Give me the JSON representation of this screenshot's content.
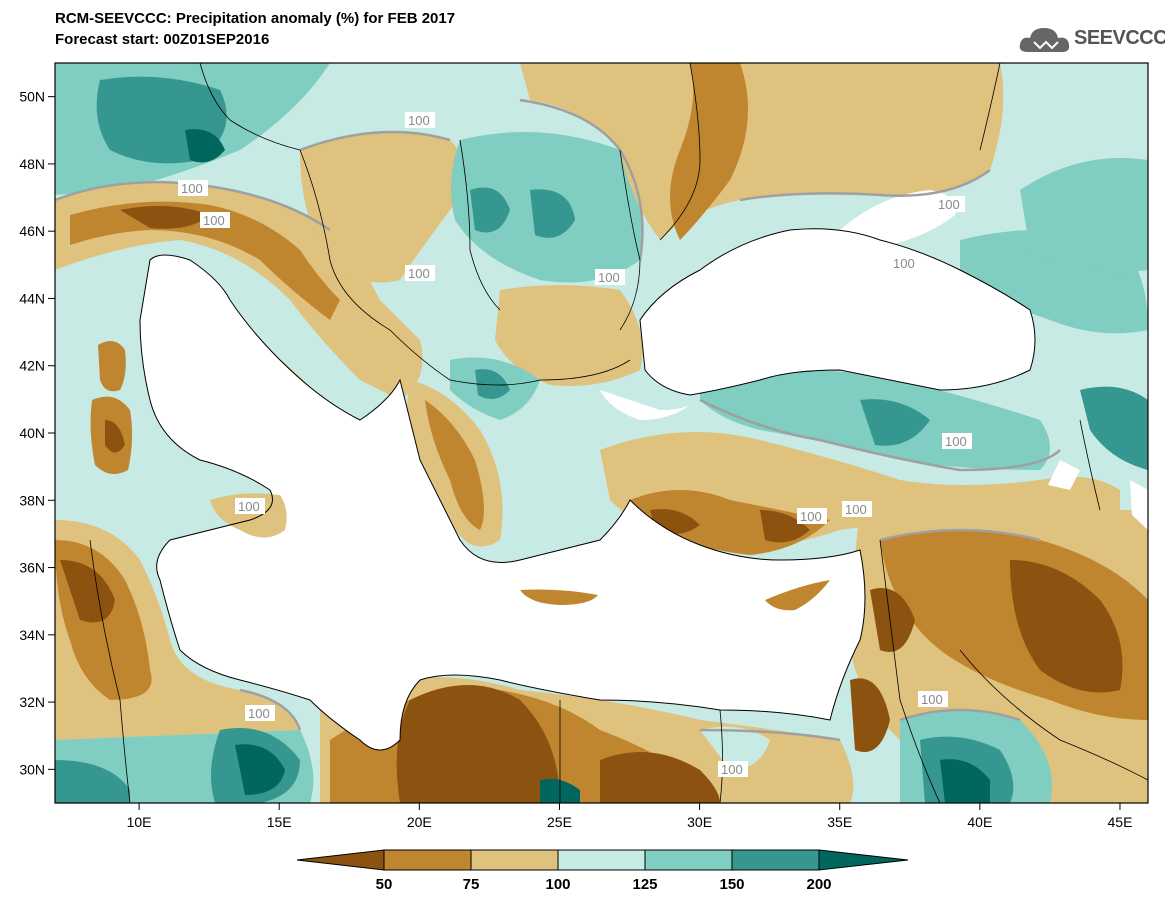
{
  "header": {
    "title": "RCM-SEEVCCC: Precipitation anomaly (%) for FEB 2017",
    "subtitle": "Forecast start: 00Z01SEP2016",
    "logo_text": "SEEVCCC"
  },
  "map": {
    "lon_range": [
      7,
      46
    ],
    "lat_range": [
      29,
      51
    ],
    "lon_ticks": [
      "10E",
      "15E",
      "20E",
      "25E",
      "30E",
      "35E",
      "40E",
      "45E"
    ],
    "lat_ticks": [
      "50N",
      "48N",
      "46N",
      "44N",
      "42N",
      "40N",
      "38N",
      "36N",
      "34N",
      "32N",
      "30N"
    ],
    "contour_labels": [
      "100",
      "100",
      "100",
      "100",
      "100",
      "100",
      "100",
      "100",
      "100",
      "100",
      "100",
      "100",
      "100",
      "100"
    ]
  },
  "colorbar": {
    "labels": [
      "50",
      "75",
      "100",
      "125",
      "150",
      "200"
    ],
    "colors": {
      "lt50": "#8c5210",
      "50_75": "#c0862f",
      "75_100": "#dfc27d",
      "100_125": "#c7eae5",
      "125_150": "#80cdc1",
      "150_200": "#35978f",
      "gt200": "#01665e"
    }
  }
}
